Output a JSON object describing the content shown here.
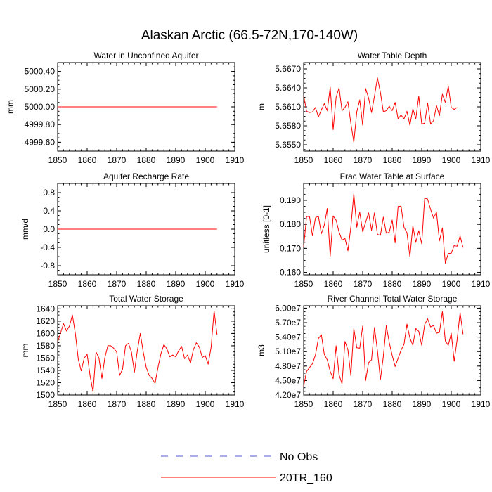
{
  "figure_title": "Alaskan Arctic (66.5-72N,170-140W)",
  "colors": {
    "model": "#ff0000",
    "obs": "#5a5ad2",
    "axis": "#000000"
  },
  "legend": {
    "obs_label": "No Obs",
    "model_label": "20TR_160"
  },
  "chart_data": [
    {
      "type": "line",
      "title": "Water in Unconfined Aquifer",
      "xlabel": "",
      "ylabel": "mm",
      "xlim": [
        1850,
        1910
      ],
      "ylim": [
        4999.5,
        5000.5
      ],
      "xticks": [
        1850,
        1860,
        1870,
        1880,
        1890,
        1900,
        1910
      ],
      "xtick_labels": [
        "1850",
        "1860",
        "1870",
        "1880",
        "1890",
        "1900",
        "1910"
      ],
      "yticks": [
        4999.6,
        4999.8,
        5000.0,
        5000.2,
        5000.4
      ],
      "ytick_labels": [
        "4999.60",
        "4999.80",
        "5000.00",
        "5000.20",
        "5000.40"
      ],
      "x_start": 1850,
      "series": [
        {
          "name": "20TR_160",
          "values": [
            5000,
            5000,
            5000,
            5000,
            5000,
            5000,
            5000,
            5000,
            5000,
            5000,
            5000,
            5000,
            5000,
            5000,
            5000,
            5000,
            5000,
            5000,
            5000,
            5000,
            5000,
            5000,
            5000,
            5000,
            5000,
            5000,
            5000,
            5000,
            5000,
            5000,
            5000,
            5000,
            5000,
            5000,
            5000,
            5000,
            5000,
            5000,
            5000,
            5000,
            5000,
            5000,
            5000,
            5000,
            5000,
            5000,
            5000,
            5000,
            5000,
            5000,
            5000,
            5000,
            5000,
            5000,
            5000
          ]
        }
      ]
    },
    {
      "type": "line",
      "title": "Water Table Depth",
      "xlabel": "",
      "ylabel": "m",
      "xlim": [
        1850,
        1910
      ],
      "ylim": [
        5.654,
        5.668
      ],
      "xticks": [
        1850,
        1860,
        1870,
        1880,
        1890,
        1900,
        1910
      ],
      "xtick_labels": [
        "1850",
        "1860",
        "1870",
        "1880",
        "1890",
        "1900",
        "1910"
      ],
      "yticks": [
        5.655,
        5.658,
        5.661,
        5.664,
        5.667
      ],
      "ytick_labels": [
        "5.6550",
        "5.6580",
        "5.6610",
        "5.6640",
        "5.6670"
      ],
      "x_start": 1850,
      "series": [
        {
          "name": "20TR_160",
          "values": [
            5.6628,
            5.6603,
            5.6601,
            5.6602,
            5.6609,
            5.6594,
            5.6605,
            5.6615,
            5.6604,
            5.6641,
            5.6574,
            5.6625,
            5.664,
            5.6604,
            5.6609,
            5.6618,
            5.6584,
            5.6554,
            5.6602,
            5.6621,
            5.6581,
            5.6639,
            5.6624,
            5.6601,
            5.6627,
            5.6656,
            5.6633,
            5.6602,
            5.6604,
            5.6611,
            5.6604,
            5.6617,
            5.6591,
            5.6597,
            5.6591,
            5.6603,
            5.6581,
            5.6607,
            5.6591,
            5.6627,
            5.6583,
            5.6584,
            5.6616,
            5.6583,
            5.6588,
            5.6612,
            5.6596,
            5.663,
            5.6617,
            5.6643,
            5.6609,
            5.6606,
            5.6609
          ]
        }
      ]
    },
    {
      "type": "line",
      "title": "Aquifer Recharge Rate",
      "xlabel": "",
      "ylabel": "mm/d",
      "xlim": [
        1850,
        1910
      ],
      "ylim": [
        -1.0,
        1.0
      ],
      "xticks": [
        1850,
        1860,
        1870,
        1880,
        1890,
        1900,
        1910
      ],
      "xtick_labels": [
        "1850",
        "1860",
        "1870",
        "1880",
        "1890",
        "1900",
        "1910"
      ],
      "yticks": [
        -0.8,
        -0.4,
        0.0,
        0.4,
        0.8
      ],
      "ytick_labels": [
        "-0.8",
        "-0.4",
        "0.0",
        "0.4",
        "0.8"
      ],
      "x_start": 1850,
      "series": [
        {
          "name": "20TR_160",
          "values": [
            0,
            0,
            0,
            0,
            0,
            0,
            0,
            0,
            0,
            0,
            0,
            0,
            0,
            0,
            0,
            0,
            0,
            0,
            0,
            0,
            0,
            0,
            0,
            0,
            0,
            0,
            0,
            0,
            0,
            0,
            0,
            0,
            0,
            0,
            0,
            0,
            0,
            0,
            0,
            0,
            0,
            0,
            0,
            0,
            0,
            0,
            0,
            0,
            0,
            0,
            0,
            0,
            0,
            0,
            0
          ]
        }
      ]
    },
    {
      "type": "line",
      "title": "Frac Water Table at Surface",
      "xlabel": "",
      "ylabel": "unitless [0-1]",
      "xlim": [
        1850,
        1910
      ],
      "ylim": [
        0.159,
        0.197
      ],
      "xticks": [
        1850,
        1860,
        1870,
        1880,
        1890,
        1900,
        1910
      ],
      "xtick_labels": [
        "1850",
        "1860",
        "1870",
        "1880",
        "1890",
        "1900",
        "1910"
      ],
      "yticks": [
        0.16,
        0.17,
        0.18,
        0.19
      ],
      "ytick_labels": [
        "0.160",
        "0.170",
        "0.180",
        "0.190"
      ],
      "x_start": 1850,
      "series": [
        {
          "name": "20TR_160",
          "values": [
            0.1705,
            0.1833,
            0.1832,
            0.1752,
            0.1827,
            0.1834,
            0.1761,
            0.1797,
            0.1866,
            0.1668,
            0.1835,
            0.1817,
            0.1768,
            0.1735,
            0.1741,
            0.169,
            0.1789,
            0.1928,
            0.1788,
            0.1851,
            0.1769,
            0.1809,
            0.1848,
            0.1775,
            0.1848,
            0.1758,
            0.1754,
            0.183,
            0.1763,
            0.1767,
            0.1818,
            0.1723,
            0.1874,
            0.1876,
            0.1788,
            0.1765,
            0.1665,
            0.1795,
            0.1725,
            0.1774,
            0.1719,
            0.1909,
            0.1905,
            0.1862,
            0.1826,
            0.1851,
            0.1731,
            0.1785,
            0.1638,
            0.1679,
            0.168,
            0.1712,
            0.1709,
            0.1752,
            0.1703
          ]
        }
      ]
    },
    {
      "type": "line",
      "title": "Total Water Storage",
      "xlabel": "",
      "ylabel": "mm",
      "xlim": [
        1850,
        1910
      ],
      "ylim": [
        1500,
        1645
      ],
      "xticks": [
        1850,
        1860,
        1870,
        1880,
        1890,
        1900,
        1910
      ],
      "xtick_labels": [
        "1850",
        "1860",
        "1870",
        "1880",
        "1890",
        "1900",
        "1910"
      ],
      "yticks": [
        1500,
        1520,
        1540,
        1560,
        1580,
        1600,
        1620,
        1640
      ],
      "ytick_labels": [
        "1500",
        "1520",
        "1540",
        "1560",
        "1580",
        "1600",
        "1620",
        "1640"
      ],
      "x_start": 1850,
      "series": [
        {
          "name": "20TR_160",
          "values": [
            1586,
            1601,
            1616,
            1604,
            1612,
            1630,
            1600,
            1558,
            1539,
            1560,
            1566,
            1531,
            1505,
            1570,
            1560,
            1527,
            1561,
            1580,
            1580,
            1576,
            1570,
            1532,
            1542,
            1580,
            1584,
            1570,
            1537,
            1572,
            1600,
            1570,
            1545,
            1532,
            1527,
            1519,
            1545,
            1567,
            1582,
            1575,
            1562,
            1565,
            1562,
            1572,
            1579,
            1559,
            1565,
            1552,
            1574,
            1585,
            1578,
            1561,
            1564,
            1550,
            1578,
            1637,
            1598
          ]
        }
      ]
    },
    {
      "type": "line",
      "title": "River Channel Total Water Storage",
      "xlabel": "",
      "ylabel": "m3",
      "xlim": [
        1850,
        1910
      ],
      "ylim": [
        42000000,
        60500000
      ],
      "xticks": [
        1850,
        1860,
        1870,
        1880,
        1890,
        1900,
        1910
      ],
      "xtick_labels": [
        "1850",
        "1860",
        "1870",
        "1880",
        "1890",
        "1900",
        "1910"
      ],
      "yticks": [
        42000000,
        45000000,
        48000000,
        51000000,
        54000000,
        57000000,
        60000000
      ],
      "ytick_labels": [
        "4.20e7",
        "4.50e7",
        "4.80e7",
        "5.10e7",
        "5.40e7",
        "5.70e7",
        "6.00e7"
      ],
      "x_start": 1850,
      "series": [
        {
          "name": "20TR_160",
          "values": [
            43800000,
            46900000,
            47700000,
            48500000,
            50300000,
            53700000,
            54500000,
            50400000,
            49300000,
            46900000,
            45400000,
            52200000,
            46200000,
            44300000,
            53100000,
            51400000,
            46000000,
            55800000,
            51800000,
            51700000,
            56300000,
            45000000,
            48700000,
            49300000,
            56000000,
            51200000,
            45200000,
            50000000,
            56400000,
            52900000,
            50200000,
            47900000,
            49600000,
            51300000,
            52500000,
            56700000,
            53800000,
            52300000,
            55800000,
            55200000,
            52300000,
            56600000,
            57800000,
            56100000,
            56400000,
            54800000,
            55000000,
            59300000,
            53200000,
            52300000,
            54800000,
            49000000,
            53500000,
            59100000,
            54600000
          ]
        }
      ]
    }
  ]
}
